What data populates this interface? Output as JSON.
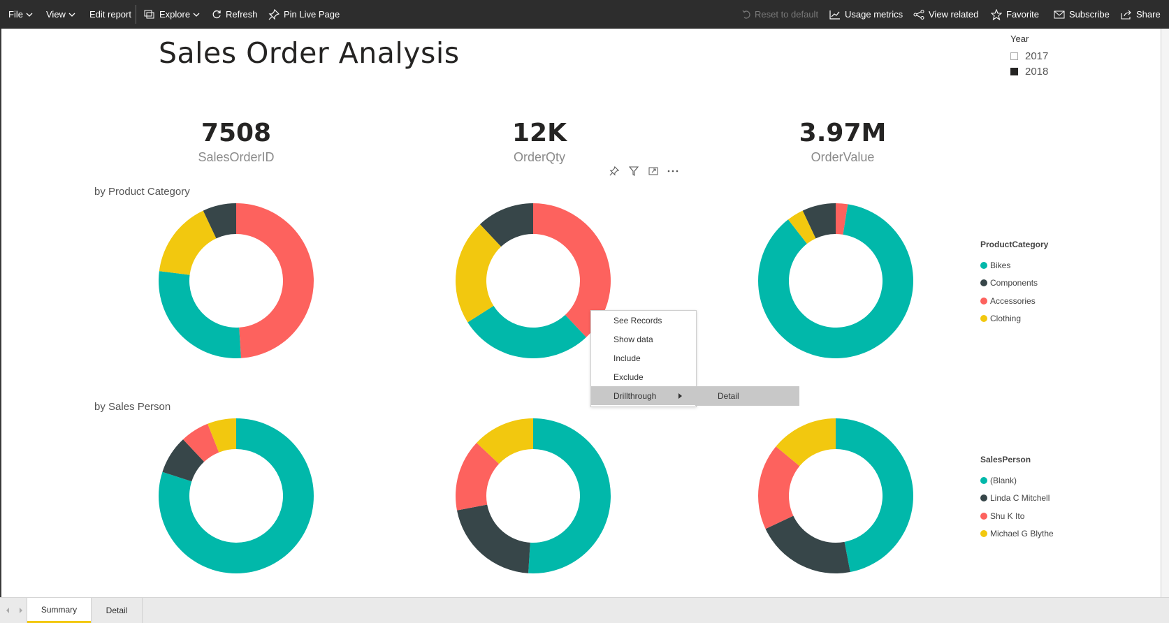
{
  "toolbar": {
    "file": "File",
    "view": "View",
    "edit_report": "Edit report",
    "explore": "Explore",
    "refresh": "Refresh",
    "pin_live_page": "Pin Live Page",
    "reset_to_default": "Reset to default",
    "usage_metrics": "Usage metrics",
    "view_related": "View related",
    "favorite": "Favorite",
    "subscribe": "Subscribe",
    "share": "Share"
  },
  "report": {
    "title": "Sales Order Analysis"
  },
  "slicer": {
    "title": "Year",
    "options": [
      {
        "label": "2017",
        "checked": false
      },
      {
        "label": "2018",
        "checked": true
      }
    ]
  },
  "cards": [
    {
      "value": "7508",
      "label": "SalesOrderID"
    },
    {
      "value": "12K",
      "label": "OrderQty"
    },
    {
      "value": "3.97M",
      "label": "OrderValue"
    }
  ],
  "sections": {
    "by_product_category": "by Product Category",
    "by_sales_person": "by Sales Person"
  },
  "colors": {
    "teal": "#01b8aa",
    "dark": "#374649",
    "red": "#fd625e",
    "yellow": "#f2c80f",
    "toolbar": "#2d2d2d",
    "tab_accent": "#f2c811"
  },
  "legends": {
    "product_category": {
      "title": "ProductCategory",
      "items": [
        {
          "label": "Bikes",
          "color": "#01b8aa"
        },
        {
          "label": "Components",
          "color": "#374649"
        },
        {
          "label": "Accessories",
          "color": "#fd625e"
        },
        {
          "label": "Clothing",
          "color": "#f2c80f"
        }
      ]
    },
    "sales_person": {
      "title": "SalesPerson",
      "items": [
        {
          "label": "(Blank)",
          "color": "#01b8aa"
        },
        {
          "label": "Linda C Mitchell",
          "color": "#374649"
        },
        {
          "label": "Shu K Ito",
          "color": "#fd625e"
        },
        {
          "label": "Michael G Blythe",
          "color": "#f2c80f"
        }
      ]
    }
  },
  "chart_data": [
    {
      "type": "pie",
      "donut": true,
      "group": "product_category",
      "measure": "SalesOrderID",
      "categories": [
        "Bikes",
        "Components",
        "Accessories",
        "Clothing"
      ],
      "values": [
        28,
        7,
        49,
        16
      ]
    },
    {
      "type": "pie",
      "donut": true,
      "group": "product_category",
      "measure": "OrderQty",
      "categories": [
        "Bikes",
        "Components",
        "Accessories",
        "Clothing"
      ],
      "values": [
        28,
        12,
        38,
        22
      ]
    },
    {
      "type": "pie",
      "donut": true,
      "group": "product_category",
      "measure": "OrderValue",
      "categories": [
        "Bikes",
        "Components",
        "Accessories",
        "Clothing"
      ],
      "values": [
        87,
        7,
        2.5,
        3.5
      ]
    },
    {
      "type": "pie",
      "donut": true,
      "group": "sales_person",
      "measure": "SalesOrderID",
      "categories": [
        "(Blank)",
        "Linda C Mitchell",
        "Shu K Ito",
        "Michael G Blythe"
      ],
      "values": [
        80,
        8,
        6,
        6
      ]
    },
    {
      "type": "pie",
      "donut": true,
      "group": "sales_person",
      "measure": "OrderQty",
      "categories": [
        "(Blank)",
        "Linda C Mitchell",
        "Shu K Ito",
        "Michael G Blythe"
      ],
      "values": [
        51,
        21,
        15,
        13
      ]
    },
    {
      "type": "pie",
      "donut": true,
      "group": "sales_person",
      "measure": "OrderValue",
      "categories": [
        "(Blank)",
        "Linda C Mitchell",
        "Shu K Ito",
        "Michael G Blythe"
      ],
      "values": [
        47,
        21,
        18,
        14
      ]
    }
  ],
  "context_menu": {
    "items": [
      "See Records",
      "Show data",
      "Include",
      "Exclude",
      "Drillthrough"
    ],
    "submenu_item": "Detail"
  },
  "page_tabs": [
    "Summary",
    "Detail"
  ]
}
